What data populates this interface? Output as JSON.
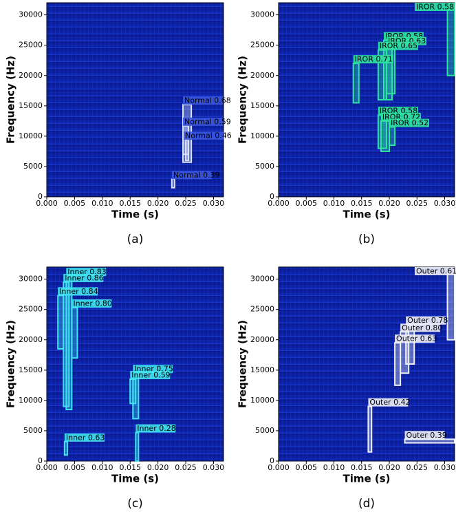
{
  "chart_data": [
    {
      "type": "spectrogram",
      "caption": "(a)",
      "xlabel": "Time (s)",
      "ylabel": "Frequency (Hz)",
      "xlim": [
        0,
        0.0318
      ],
      "ylim": [
        0,
        32000
      ],
      "xticks": [
        {
          "value": 0,
          "label": "0.000"
        },
        {
          "value": 0.005,
          "label": "0.005"
        },
        {
          "value": 0.01,
          "label": "0.010"
        },
        {
          "value": 0.015,
          "label": "0.015"
        },
        {
          "value": 0.02,
          "label": "0.020"
        },
        {
          "value": 0.025,
          "label": "0.025"
        },
        {
          "value": 0.03,
          "label": "0.030"
        }
      ],
      "yticks": [
        0,
        5000,
        10000,
        15000,
        20000,
        25000,
        30000
      ],
      "box_color": "#d8e2ff",
      "label_text_color": "#ffffff",
      "label_bg": "#3a55e0",
      "detections": [
        {
          "label": "Normal 0.68",
          "t": [
            0.0245,
            0.026
          ],
          "f": [
            5700,
            15200
          ]
        },
        {
          "label": "Normal 0.59",
          "t": [
            0.0245,
            0.0255
          ],
          "f": [
            7000,
            11700
          ]
        },
        {
          "label": "Normal 0.46",
          "t": [
            0.025,
            0.0255
          ],
          "f": [
            6000,
            9400
          ]
        },
        {
          "label": "Normal 0.39",
          "t": [
            0.0225,
            0.023
          ],
          "f": [
            1500,
            2900
          ]
        }
      ]
    },
    {
      "type": "spectrogram",
      "caption": "(b)",
      "xlabel": "Time (s)",
      "ylabel": "Frequency (Hz)",
      "xlim": [
        0,
        0.0318
      ],
      "ylim": [
        0,
        32000
      ],
      "xticks": [
        {
          "value": 0,
          "label": "0.000"
        },
        {
          "value": 0.005,
          "label": "0.005"
        },
        {
          "value": 0.01,
          "label": "0.010"
        },
        {
          "value": 0.015,
          "label": "0.015"
        },
        {
          "value": 0.02,
          "label": "0.020"
        },
        {
          "value": 0.025,
          "label": "0.025"
        },
        {
          "value": 0.03,
          "label": "0.030"
        }
      ],
      "yticks": [
        0,
        5000,
        10000,
        15000,
        20000,
        25000,
        30000
      ],
      "box_color": "#2fe3a2",
      "label_text_color": "#0b1a50",
      "label_bg": "#2fe3a2",
      "detections": [
        {
          "label": "IROR 0.58",
          "t": [
            0.0305,
            0.0318
          ],
          "f": [
            20000,
            31800
          ]
        },
        {
          "label": "IROR 0.58",
          "t": [
            0.019,
            0.0205
          ],
          "f": [
            16000,
            25800
          ]
        },
        {
          "label": "IROR 0.63",
          "t": [
            0.0195,
            0.021
          ],
          "f": [
            17000,
            25000
          ]
        },
        {
          "label": "IROR 0.65",
          "t": [
            0.018,
            0.0195
          ],
          "f": [
            16000,
            24200
          ]
        },
        {
          "label": "IROR 0.71",
          "t": [
            0.0135,
            0.0145
          ],
          "f": [
            15500,
            22000
          ]
        },
        {
          "label": "IROR 0.58",
          "t": [
            0.018,
            0.0195
          ],
          "f": [
            8000,
            13500
          ]
        },
        {
          "label": "IROR 0.72",
          "t": [
            0.0185,
            0.02
          ],
          "f": [
            7500,
            12500
          ]
        },
        {
          "label": "IROR 0.52",
          "t": [
            0.02,
            0.021
          ],
          "f": [
            8500,
            11500
          ]
        }
      ]
    },
    {
      "type": "spectrogram",
      "caption": "(c)",
      "xlabel": "Time (s)",
      "ylabel": "Frequency (Hz)",
      "xlim": [
        0,
        0.0318
      ],
      "ylim": [
        0,
        32000
      ],
      "xticks": [
        {
          "value": 0,
          "label": "0.000"
        },
        {
          "value": 0.005,
          "label": "0.005"
        },
        {
          "value": 0.01,
          "label": "0.010"
        },
        {
          "value": 0.015,
          "label": "0.015"
        },
        {
          "value": 0.02,
          "label": "0.020"
        },
        {
          "value": 0.025,
          "label": "0.025"
        },
        {
          "value": 0.03,
          "label": "0.030"
        }
      ],
      "yticks": [
        0,
        5000,
        10000,
        15000,
        20000,
        25000,
        30000
      ],
      "box_color": "#40e4f0",
      "label_text_color": "#0b1a50",
      "label_bg": "#40e4f0",
      "detections": [
        {
          "label": "Inner 0.83",
          "t": [
            0.0035,
            0.0045
          ],
          "f": [
            8500,
            30500
          ]
        },
        {
          "label": "Inner 0.86",
          "t": [
            0.003,
            0.004
          ],
          "f": [
            9000,
            29500
          ]
        },
        {
          "label": "Inner 0.84",
          "t": [
            0.002,
            0.003
          ],
          "f": [
            18500,
            27300
          ]
        },
        {
          "label": "Inner 0.80",
          "t": [
            0.0045,
            0.0055
          ],
          "f": [
            17000,
            25300
          ]
        },
        {
          "label": "Inner 0.75",
          "t": [
            0.0155,
            0.0165
          ],
          "f": [
            7000,
            14500
          ]
        },
        {
          "label": "Inner 0.59",
          "t": [
            0.015,
            0.016
          ],
          "f": [
            9500,
            13500
          ]
        },
        {
          "label": "Inner 0.63",
          "t": [
            0.0032,
            0.0037
          ],
          "f": [
            1000,
            3200
          ]
        },
        {
          "label": "Inner 0.28",
          "t": [
            0.016,
            0.0165
          ],
          "f": [
            0,
            4700
          ]
        }
      ]
    },
    {
      "type": "spectrogram",
      "caption": "(d)",
      "xlabel": "Time (s)",
      "ylabel": "Frequency (Hz)",
      "xlim": [
        0,
        0.0318
      ],
      "ylim": [
        0,
        32000
      ],
      "xticks": [
        {
          "value": 0,
          "label": "0.000"
        },
        {
          "value": 0.005,
          "label": "0.005"
        },
        {
          "value": 0.01,
          "label": "0.010"
        },
        {
          "value": 0.015,
          "label": "0.015"
        },
        {
          "value": 0.02,
          "label": "0.020"
        },
        {
          "value": 0.025,
          "label": "0.025"
        },
        {
          "value": 0.03,
          "label": "0.030"
        }
      ],
      "yticks": [
        0,
        5000,
        10000,
        15000,
        20000,
        25000,
        30000
      ],
      "box_color": "#eef0f8",
      "label_text_color": "#0b1a50",
      "label_bg": "#eef0f8",
      "detections": [
        {
          "label": "Outer 0.61",
          "t": [
            0.0305,
            0.0318
          ],
          "f": [
            20000,
            31000
          ]
        },
        {
          "label": "Outer 0.78",
          "t": [
            0.023,
            0.0245
          ],
          "f": [
            16000,
            22500
          ]
        },
        {
          "label": "Outer 0.80",
          "t": [
            0.022,
            0.0235
          ],
          "f": [
            14500,
            21300
          ]
        },
        {
          "label": "Outer 0.63",
          "t": [
            0.021,
            0.022
          ],
          "f": [
            12500,
            19500
          ]
        },
        {
          "label": "Outer 0.42",
          "t": [
            0.0162,
            0.0168
          ],
          "f": [
            1500,
            9000
          ]
        },
        {
          "label": "Outer 0.39",
          "t": [
            0.0228,
            0.0318
          ],
          "f": [
            3000,
            3600
          ]
        }
      ]
    }
  ]
}
